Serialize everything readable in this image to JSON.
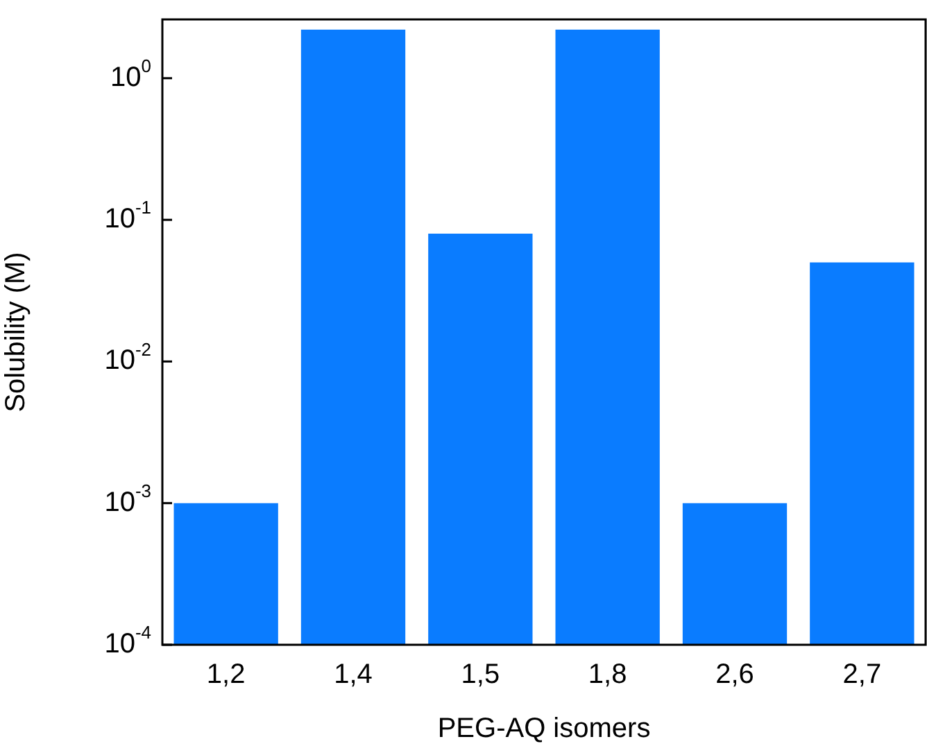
{
  "chart_data": {
    "type": "bar",
    "xlabel": "PEG-AQ isomers",
    "ylabel": "Solubility (M)",
    "categories": [
      "1,2",
      "1,4",
      "1,5",
      "1,8",
      "2,6",
      "2,7"
    ],
    "values": [
      0.001,
      2.2,
      0.08,
      2.2,
      0.001,
      0.05
    ],
    "color": "#0a7cff",
    "log": "y",
    "ylim": [
      0.0001,
      2.6
    ],
    "yticks": [
      {
        "value": 0.0001,
        "label": "10$^{-4}$"
      },
      {
        "value": 0.001,
        "label": "10$^{-3}$"
      },
      {
        "value": 0.01,
        "label": "10$^{-2}$"
      },
      {
        "value": 0.1,
        "label": "10$^{-1}$"
      },
      {
        "value": 1,
        "label": "10$^{0}$"
      }
    ],
    "grid": false,
    "legend": false
  }
}
